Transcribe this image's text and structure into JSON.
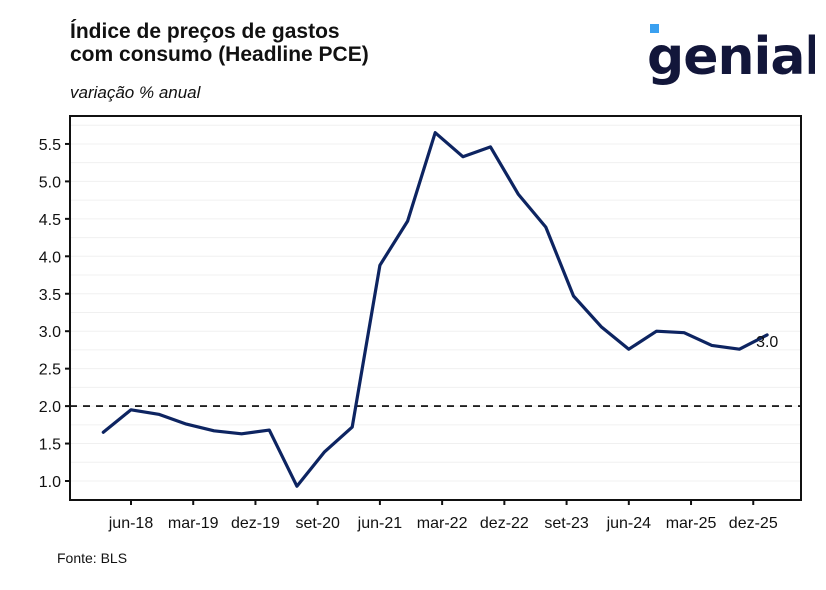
{
  "header": {
    "title_line1": "Índice de preços de gastos",
    "title_line2": "com consumo (Headline PCE)",
    "subtitle": "variação % anual"
  },
  "logo": {
    "text": "genial",
    "text_color": "#12163a",
    "accent_color": "#3aa0f0"
  },
  "footer": {
    "source": "Fonte: BLS"
  },
  "chart_data": {
    "type": "line",
    "title": "Índice de preços de gastos com consumo (Headline PCE)",
    "subtitle": "variação % anual",
    "xlabel": "",
    "ylabel": "",
    "x_tick_labels": [
      "jun-18",
      "mar-19",
      "dez-19",
      "set-20",
      "jun-21",
      "mar-22",
      "dez-22",
      "set-23",
      "jun-24",
      "mar-25",
      "dez-25"
    ],
    "x_tick_months": [
      0,
      9,
      18,
      27,
      36,
      45,
      54,
      63,
      72,
      81,
      90
    ],
    "y_ticks": [
      1.0,
      1.5,
      2.0,
      2.5,
      3.0,
      3.5,
      4.0,
      4.5,
      5.0,
      5.5
    ],
    "y_tick_labels": [
      "1.0",
      "1.5",
      "2.0",
      "2.5",
      "3.0",
      "3.5",
      "4.0",
      "4.5",
      "5.0",
      "5.5"
    ],
    "ylim": [
      0.79,
      5.81
    ],
    "grid": true,
    "reference_line": {
      "value": 2.0,
      "style": "dashed",
      "color": "#000000"
    },
    "series": [
      {
        "name": "Headline PCE",
        "color": "#0d2461",
        "x_months_from_jun18": [
          -4,
          0,
          4,
          8,
          12,
          16,
          20,
          24,
          28,
          32,
          36,
          40,
          44,
          48,
          52,
          56,
          60,
          64,
          68,
          72,
          76,
          80,
          84,
          88,
          92
        ],
        "values": [
          1.65,
          1.95,
          1.89,
          1.76,
          1.67,
          1.63,
          1.68,
          0.93,
          1.39,
          1.72,
          3.88,
          4.47,
          5.65,
          5.33,
          5.46,
          4.83,
          4.39,
          3.47,
          3.06,
          2.76,
          3.0,
          2.98,
          2.81,
          2.76,
          2.95
        ]
      }
    ],
    "end_label": "3.0"
  }
}
